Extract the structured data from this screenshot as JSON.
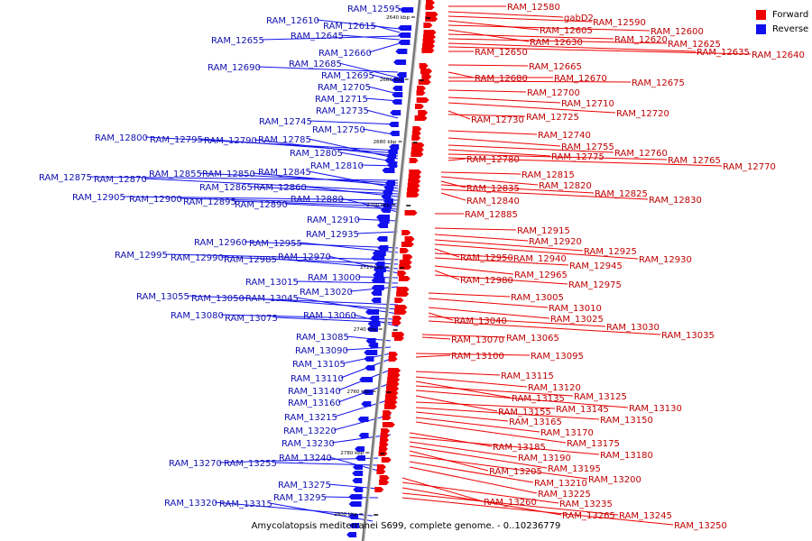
{
  "legend": {
    "items": [
      {
        "label": "Forward",
        "color": "#ee0000"
      },
      {
        "label": "Reverse",
        "color": "#1111ee"
      }
    ]
  },
  "caption": "Amycolatopsis mediterranei S699, complete genome. - 0..10236779",
  "axis": {
    "ticks": [
      "2640 kbp",
      "2660 kbp",
      "2680 kbp",
      "2700 kbp",
      "2720 kbp",
      "2740 kbp",
      "2760 kbp",
      "2780 kbp",
      "2800 kbp"
    ]
  },
  "colors": {
    "forward": "#ee0000",
    "reverse": "#1111ee",
    "axis": "#7a7a7a"
  },
  "forward_genes": [
    "RAM_12580",
    "gabD2",
    "RAM_12590",
    "RAM_12605",
    "RAM_12600",
    "RAM_12630",
    "RAM_12620",
    "RAM_12625",
    "RAM_12635",
    "RAM_12640",
    "RAM_12650",
    "RAM_12665",
    "RAM_12680",
    "RAM_12670",
    "RAM_12675",
    "RAM_12700",
    "RAM_12710",
    "RAM_12720",
    "RAM_12730",
    "RAM_12725",
    "RAM_12740",
    "RAM_12755",
    "RAM_12760",
    "RAM_12775",
    "RAM_12765",
    "RAM_12770",
    "RAM_12780",
    "RAM_12815",
    "RAM_12820",
    "RAM_12835",
    "RAM_12825",
    "RAM_12830",
    "RAM_12840",
    "RAM_12885",
    "RAM_12915",
    "RAM_12920",
    "RAM_12925",
    "RAM_12930",
    "RAM_12950",
    "RAM_12940",
    "RAM_12945",
    "RAM_12965",
    "RAM_12980",
    "RAM_12975",
    "RAM_13005",
    "RAM_13010",
    "RAM_13025",
    "RAM_13040",
    "RAM_13030",
    "RAM_13035",
    "RAM_13070",
    "RAM_13065",
    "RAM_13100",
    "RAM_13095",
    "RAM_13115",
    "RAM_13120",
    "RAM_13135",
    "RAM_13125",
    "RAM_13130",
    "RAM_13155",
    "RAM_13145",
    "RAM_13150",
    "RAM_13165",
    "RAM_13170",
    "RAM_13175",
    "RAM_13185",
    "RAM_13180",
    "RAM_13190",
    "RAM_13195",
    "RAM_13205",
    "RAM_13200",
    "RAM_13210",
    "RAM_13225",
    "RAM_13260",
    "RAM_13235",
    "RAM_13265",
    "RAM_13245",
    "RAM_13250"
  ],
  "reverse_genes": [
    "RAM_12595",
    "RAM_12610",
    "RAM_12615",
    "RAM_12655",
    "RAM_12645",
    "RAM_12660",
    "RAM_12690",
    "RAM_12685",
    "RAM_12695",
    "RAM_12705",
    "RAM_12715",
    "RAM_12735",
    "RAM_12745",
    "RAM_12750",
    "RAM_12800",
    "RAM_12795",
    "RAM_12790",
    "RAM_12785",
    "RAM_12805",
    "RAM_12810",
    "RAM_12875",
    "RAM_12855",
    "RAM_12850",
    "RAM_12845",
    "RAM_12870",
    "RAM_12865",
    "RAM_12860",
    "RAM_12905",
    "RAM_12900",
    "RAM_12895",
    "RAM_12890",
    "RAM_12880",
    "RAM_12910",
    "RAM_12935",
    "RAM_12960",
    "RAM_12955",
    "RAM_12995",
    "RAM_12990",
    "RAM_12985",
    "RAM_12970",
    "RAM_13000",
    "RAM_13015",
    "RAM_13020",
    "RAM_13055",
    "RAM_13050",
    "RAM_13045",
    "RAM_13080",
    "RAM_13075",
    "RAM_13060",
    "RAM_13085",
    "RAM_13090",
    "RAM_13105",
    "RAM_13110",
    "RAM_13140",
    "RAM_13160",
    "RAM_13215",
    "RAM_13220",
    "RAM_13230",
    "RAM_13270",
    "RAM_13255",
    "RAM_13240",
    "RAM_13275",
    "RAM_13295",
    "RAM_13320",
    "RAM_13315"
  ]
}
